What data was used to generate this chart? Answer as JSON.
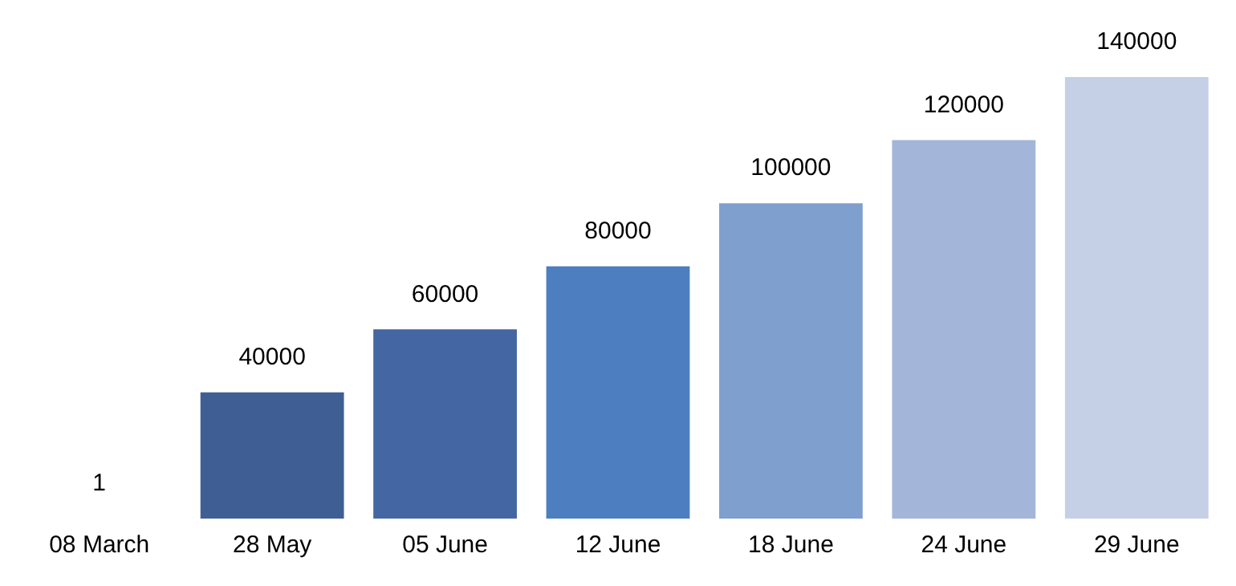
{
  "chart_data": {
    "type": "bar",
    "categories": [
      "08 March",
      "28 May",
      "05 June",
      "12 June",
      "18 June",
      "24 June",
      "29 June"
    ],
    "values": [
      1,
      40000,
      60000,
      80000,
      100000,
      120000,
      140000
    ],
    "colors": [
      "#3f5f94",
      "#3f5f94",
      "#4467a3",
      "#4d7fc0",
      "#7f9fce",
      "#a3b5d9",
      "#c5d0e6"
    ],
    "data_labels": true,
    "grid": false,
    "legend": false
  }
}
